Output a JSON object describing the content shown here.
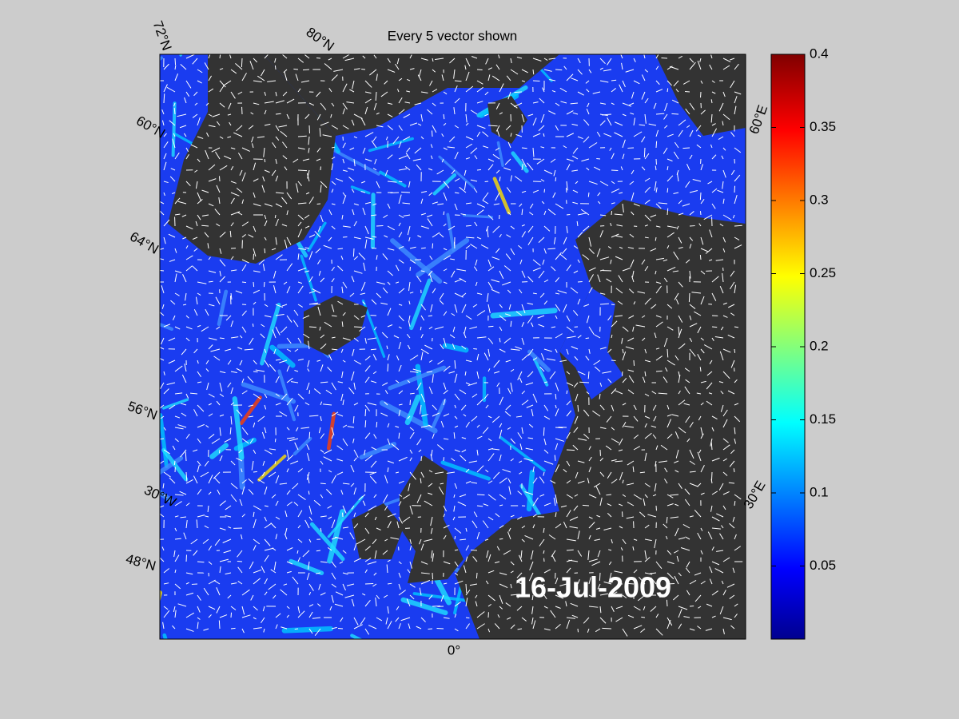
{
  "title": "Every 5 vector shown",
  "date_label": "16-Jul-2009",
  "map": {
    "lat_labels": [
      "72°N",
      "80°N",
      "60°N",
      "64°N",
      "56°N",
      "48°N"
    ],
    "lon_labels": [
      "60°E",
      "30°W",
      "0°",
      "30°E"
    ]
  },
  "colorbar": {
    "lim": [
      0,
      0.4
    ],
    "ticks": [
      0.05,
      0.1,
      0.15,
      0.2,
      0.25,
      0.3,
      0.35,
      0.4
    ]
  }
}
